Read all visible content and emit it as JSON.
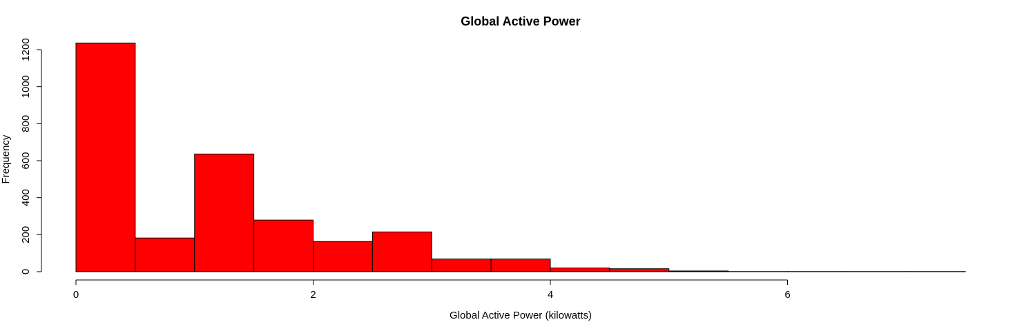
{
  "chart_data": {
    "type": "bar",
    "title": "Global Active Power",
    "xlabel": "Global Active Power (kilowatts)",
    "ylabel": "Frequency",
    "bar_color": "#ff0000",
    "edge_color": "#000000",
    "bins": [
      {
        "x0": 0.0,
        "x1": 0.5,
        "count": 1236
      },
      {
        "x0": 0.5,
        "x1": 1.0,
        "count": 182
      },
      {
        "x0": 1.0,
        "x1": 1.5,
        "count": 636
      },
      {
        "x0": 1.5,
        "x1": 2.0,
        "count": 279
      },
      {
        "x0": 2.0,
        "x1": 2.5,
        "count": 163
      },
      {
        "x0": 2.5,
        "x1": 3.0,
        "count": 215
      },
      {
        "x0": 3.0,
        "x1": 3.5,
        "count": 69
      },
      {
        "x0": 3.5,
        "x1": 4.0,
        "count": 69
      },
      {
        "x0": 4.0,
        "x1": 4.5,
        "count": 20
      },
      {
        "x0": 4.5,
        "x1": 5.0,
        "count": 16
      },
      {
        "x0": 5.0,
        "x1": 5.5,
        "count": 4
      },
      {
        "x0": 5.5,
        "x1": 6.0,
        "count": 1
      },
      {
        "x0": 6.0,
        "x1": 6.5,
        "count": 1
      },
      {
        "x0": 6.5,
        "x1": 7.0,
        "count": 1
      },
      {
        "x0": 7.0,
        "x1": 7.5,
        "count": 1
      }
    ],
    "xticks": [
      0,
      2,
      4,
      6
    ],
    "xtick_labels": [
      "0",
      "2",
      "4",
      "6"
    ],
    "yticks": [
      0,
      200,
      400,
      600,
      800,
      1000,
      1200
    ],
    "ytick_labels": [
      "0",
      "200",
      "400",
      "600",
      "800",
      "1000",
      "1200"
    ],
    "xlim": [
      0,
      7.5
    ],
    "ylim": [
      0,
      1200
    ]
  }
}
